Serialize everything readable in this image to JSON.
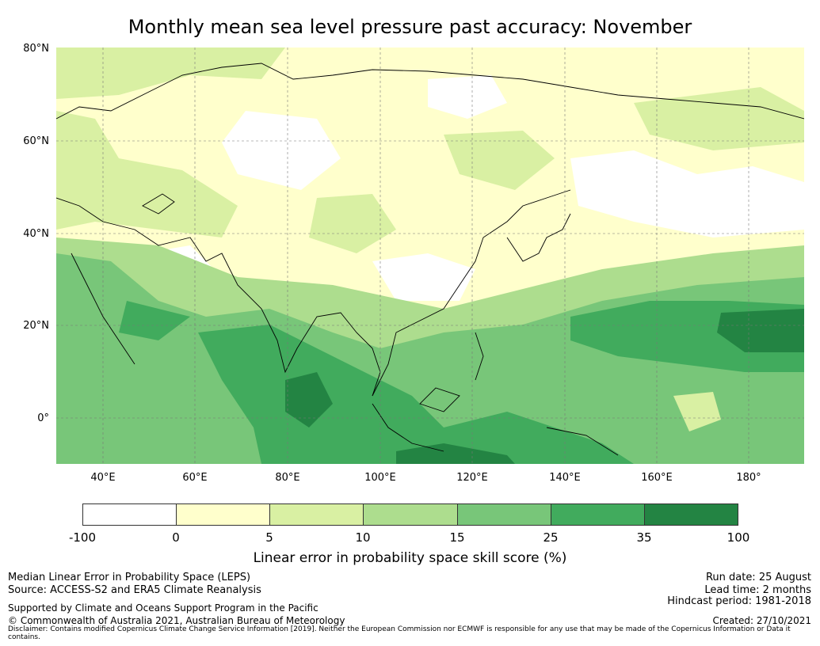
{
  "title": "Monthly mean sea level pressure past accuracy: November",
  "lat_labels": [
    "80°N",
    "60°N",
    "40°N",
    "20°N",
    "0°"
  ],
  "lon_labels": [
    "40°E",
    "60°E",
    "80°E",
    "100°E",
    "120°E",
    "140°E",
    "160°E",
    "180°"
  ],
  "colorbar": {
    "ticks": [
      "-100",
      "0",
      "5",
      "10",
      "15",
      "25",
      "35",
      "100"
    ],
    "colors": [
      "#ffffff",
      "#ffffcc",
      "#d9f0a3",
      "#addd8e",
      "#78c679",
      "#41ab5d",
      "#238443"
    ],
    "label": "Linear error in probability space skill score (%)"
  },
  "footer": {
    "line1": "Median Linear Error in Probability Space (LEPS)",
    "line2": "Source: ACCESS-S2 and ERA5 Climate Reanalysis",
    "support": "Supported by Climate and Oceans Support Program in the Pacific",
    "copyright": "© Commonwealth of Australia 2021, Australian Bureau of Meteorology",
    "disclaimer": "Disclaimer: Contains modified Copernicus Climate Change Service Information [2019]. Neither the European Commission nor ECMWF is responsible for any use that may be made of the Copernicus Information or Data it contains.",
    "run_date": "Run date: 25 August",
    "lead_time": "Lead time: 2 months",
    "hindcast": "Hindcast period: 1981-2018",
    "created": "Created: 27/10/2021"
  }
}
